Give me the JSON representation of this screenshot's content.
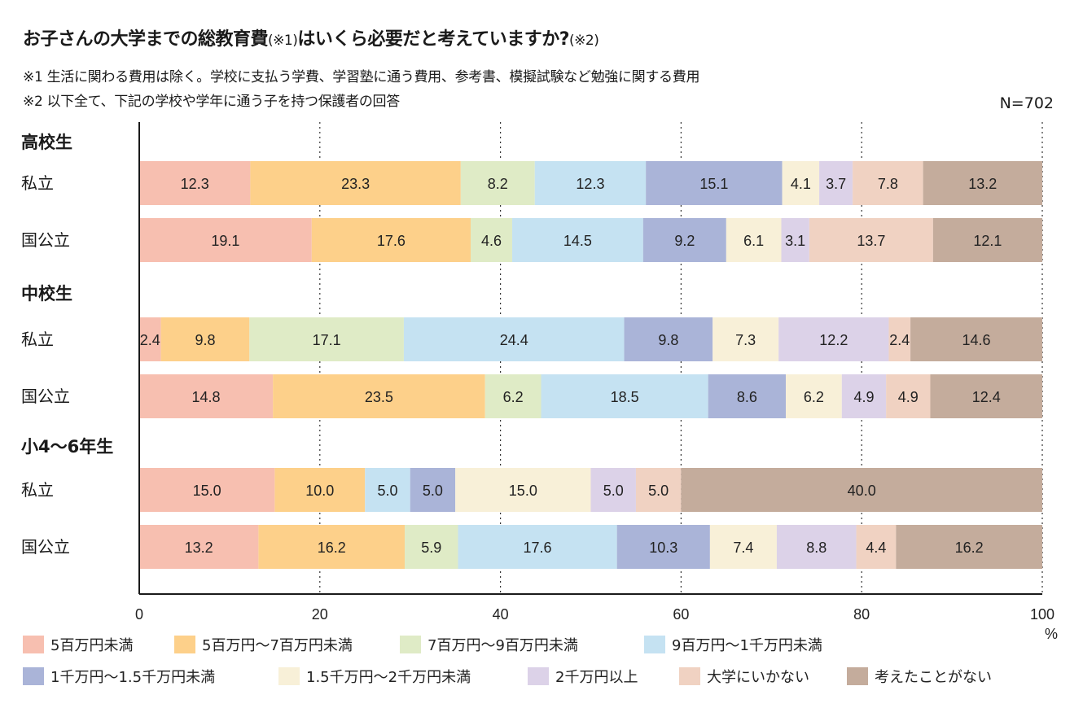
{
  "header": {
    "title_part1": "お子さんの大学までの総教育費",
    "title_note1": "(※1)",
    "title_part2": "はいくら必要だと考えていますか?",
    "title_note2": "(※2)",
    "note1": "※1 生活に関わる費用は除く。学校に支払う学費、学習塾に通う費用、参考書、模擬試験など勉強に関する費用",
    "note2": "※2 以下全て、下記の学校や学年に通う子を持つ保護者の回答",
    "sample_size": "N=702"
  },
  "chart_data": {
    "type": "bar",
    "orientation": "horizontal",
    "stacked": true,
    "xlim": [
      0,
      100
    ],
    "xticks": [
      "0",
      "20",
      "40",
      "60",
      "80",
      "100"
    ],
    "x_unit": "%",
    "grid": "dotted vertical",
    "legend_position": "bottom",
    "groups": [
      {
        "name": "高校生",
        "rows": [
          {
            "label": "私立",
            "values": [
              12.3,
              23.3,
              8.2,
              12.3,
              15.1,
              4.1,
              3.7,
              7.8,
              13.2
            ],
            "labels": [
              "12.3",
              "23.3",
              "8.2",
              "12.3",
              "15.1",
              "4.1",
              "3.7",
              "7.8",
              "13.2"
            ]
          },
          {
            "label": "国公立",
            "values": [
              19.1,
              17.6,
              4.6,
              14.5,
              9.2,
              6.1,
              3.1,
              13.7,
              12.1
            ],
            "labels": [
              "19.1",
              "17.6",
              "4.6",
              "14.5",
              "9.2",
              "6.1",
              "3.1",
              "13.7",
              "12.1"
            ]
          }
        ]
      },
      {
        "name": "中校生",
        "rows": [
          {
            "label": "私立",
            "values": [
              2.4,
              9.8,
              17.1,
              24.4,
              9.8,
              7.3,
              12.2,
              2.4,
              14.6
            ],
            "labels": [
              "2.4",
              "9.8",
              "17.1",
              "24.4",
              "9.8",
              "7.3",
              "12.2",
              "2.4",
              "14.6"
            ]
          },
          {
            "label": "国公立",
            "values": [
              14.8,
              23.5,
              6.2,
              18.5,
              8.6,
              6.2,
              4.9,
              4.9,
              12.4
            ],
            "labels": [
              "14.8",
              "23.5",
              "6.2",
              "18.5",
              "8.6",
              "6.2",
              "4.9",
              "4.9",
              "12.4"
            ]
          }
        ]
      },
      {
        "name": "小4〜6年生",
        "rows": [
          {
            "label": "私立",
            "values": [
              15.0,
              10.0,
              5.0,
              5.0,
              15.0,
              5.0,
              5.0,
              40.0
            ],
            "series_index": [
              0,
              1,
              3,
              4,
              5,
              6,
              7,
              8
            ],
            "labels": [
              "15.0",
              "10.0",
              "5.0",
              "5.0",
              "15.0",
              "5.0",
              "5.0",
              "40.0"
            ]
          },
          {
            "label": "国公立",
            "values": [
              13.2,
              16.2,
              5.9,
              17.6,
              10.3,
              7.4,
              8.8,
              4.4,
              16.2
            ],
            "labels": [
              "13.2",
              "16.2",
              "5.9",
              "17.6",
              "10.3",
              "7.4",
              "8.8",
              "4.4",
              "16.2"
            ]
          }
        ]
      }
    ],
    "series": [
      {
        "name": "5百万円未満",
        "color": "#f7bfb0"
      },
      {
        "name": "5百万円〜7百万円未満",
        "color": "#fdd08a"
      },
      {
        "name": "7百万円〜9百万円未満",
        "color": "#dfebc6"
      },
      {
        "name": "9百万円〜1千万円未満",
        "color": "#c5e2f2"
      },
      {
        "name": "1千万円〜1.5千万円未満",
        "color": "#aab4d8"
      },
      {
        "name": "1.5千万円〜2千万円未満",
        "color": "#f8f0d8"
      },
      {
        "name": "2千万円以上",
        "color": "#dcd2e8"
      },
      {
        "name": "大学にいかない",
        "color": "#f0d2c2"
      },
      {
        "name": "考えたことがない",
        "color": "#c4ac9c"
      }
    ]
  }
}
